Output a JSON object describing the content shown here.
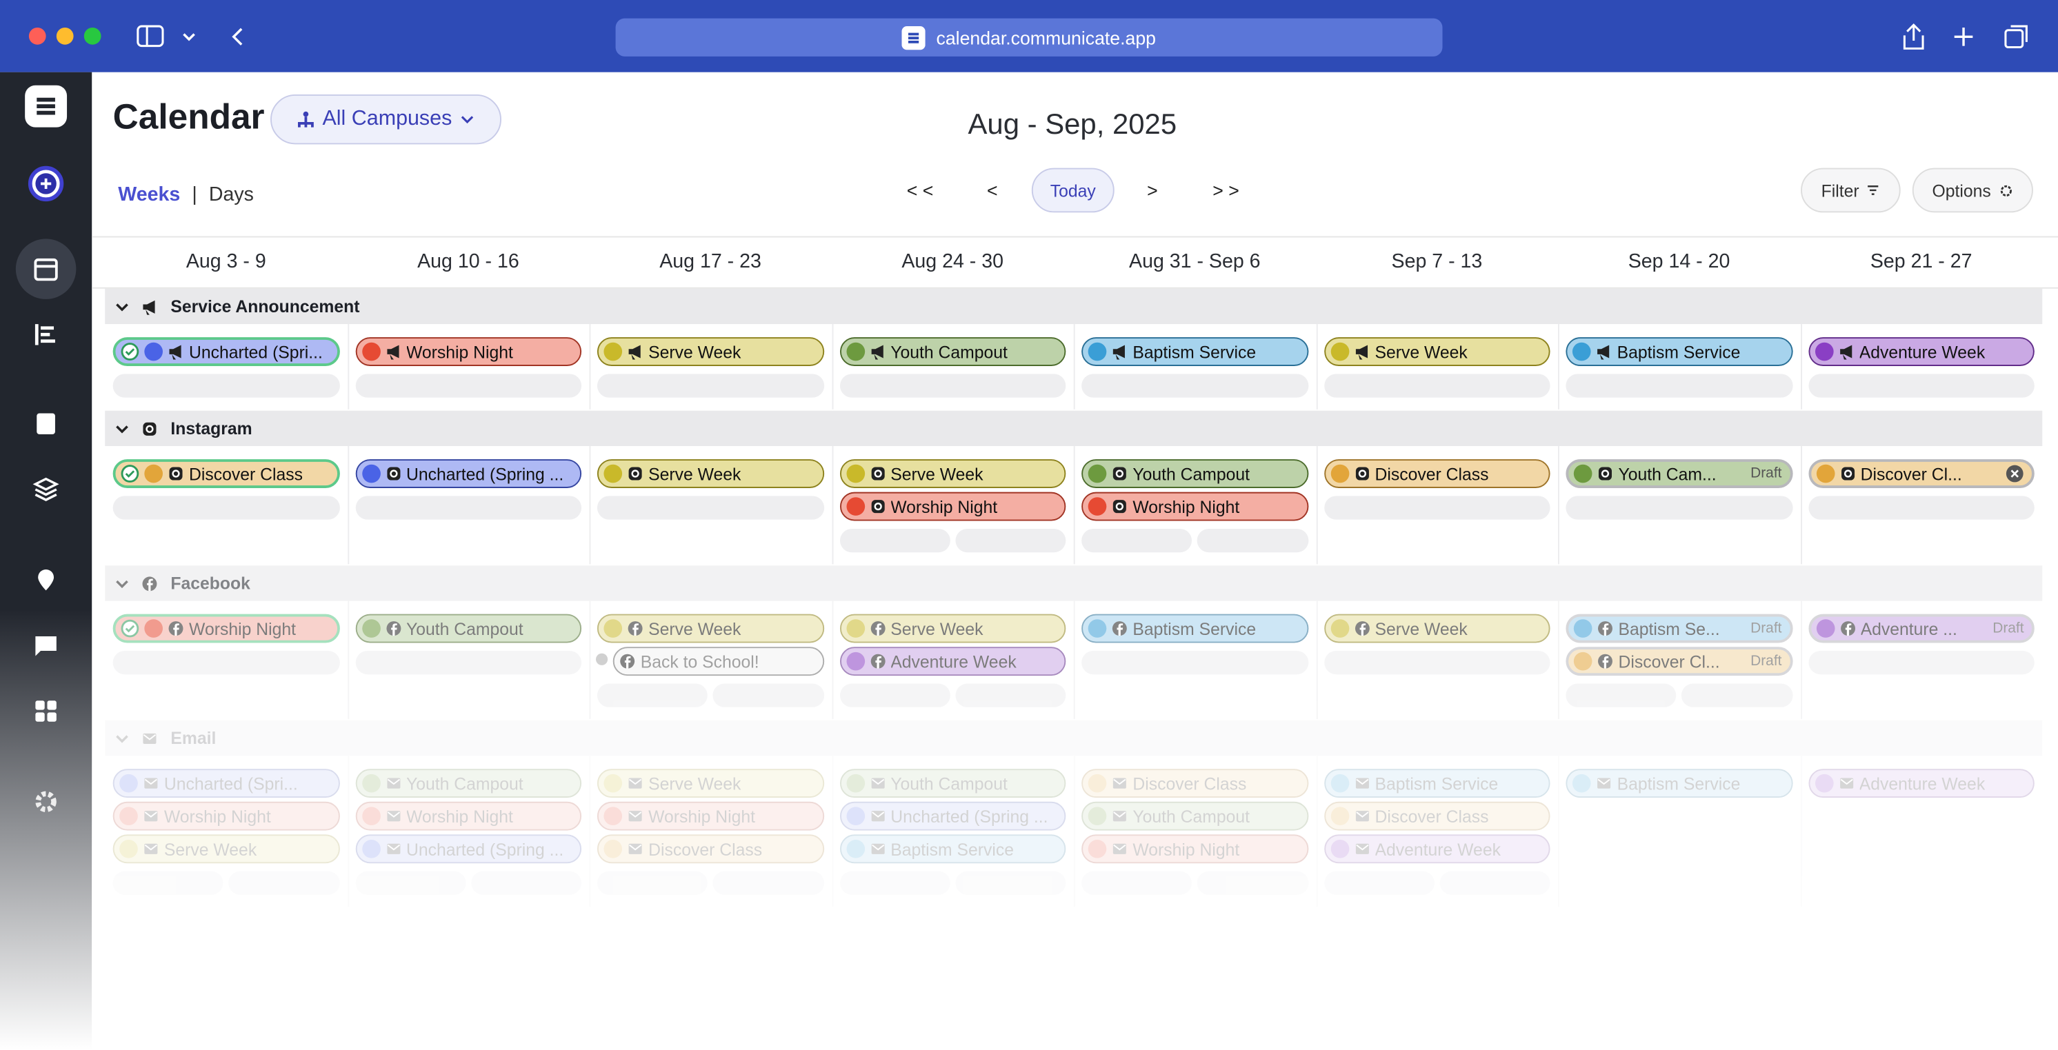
{
  "browser": {
    "url": "calendar.communicate.app"
  },
  "header": {
    "title": "Calendar",
    "campus": "All Campuses",
    "range": "Aug - Sep, 2025",
    "views": [
      "Weeks",
      "Days"
    ],
    "nav": [
      "< <",
      "<",
      "Today",
      ">",
      "> >"
    ],
    "filter": "Filter",
    "options": "Options"
  },
  "weeks": [
    "Aug 3 - 9",
    "Aug 10 - 16",
    "Aug 17 - 23",
    "Aug 24 - 30",
    "Aug 31 - Sep 6",
    "Sep 7 - 13",
    "Sep 14 - 20",
    "Sep 21 - 27"
  ],
  "sections": [
    {
      "name": "Service Announcement",
      "cells": [
        [
          {
            "label": "Uncharted (Spri...",
            "color": "#4a63e6"
          }
        ],
        [
          {
            "label": "Worship Night",
            "color": "#e64a33"
          }
        ],
        [
          {
            "label": "Serve Week",
            "color": "#c9b92a"
          }
        ],
        [
          {
            "label": "Youth Campout",
            "color": "#6d9a3f"
          }
        ],
        [
          {
            "label": "Baptism Service",
            "color": "#3a9ed6"
          }
        ],
        [
          {
            "label": "Serve Week",
            "color": "#c9b92a"
          }
        ],
        [
          {
            "label": "Baptism Service",
            "color": "#3a9ed6"
          }
        ],
        [
          {
            "label": "Adventure Week",
            "color": "#8a3fc4"
          }
        ]
      ]
    },
    {
      "name": "Instagram",
      "cells": [
        [
          {
            "label": "Discover Class",
            "color": "#e2a53a"
          }
        ],
        [
          {
            "label": "Uncharted (Spring ...",
            "color": "#4a63e6"
          }
        ],
        [
          {
            "label": "Serve Week",
            "color": "#c9b92a"
          }
        ],
        [
          {
            "label": "Serve Week",
            "color": "#c9b92a"
          },
          {
            "label": "Worship Night",
            "color": "#e64a33"
          }
        ],
        [
          {
            "label": "Youth Campout",
            "color": "#6d9a3f"
          },
          {
            "label": "Worship Night",
            "color": "#e64a33"
          }
        ],
        [
          {
            "label": "Discover Class",
            "color": "#e2a53a"
          }
        ],
        [
          {
            "label": "Youth Cam...",
            "color": "#6d9a3f",
            "status": "Draft"
          }
        ],
        [
          {
            "label": "Discover Cl...",
            "color": "#e2a53a"
          }
        ]
      ]
    },
    {
      "name": "Facebook",
      "cells": [
        [
          {
            "label": "Worship Night",
            "color": "#e64a33"
          }
        ],
        [
          {
            "label": "Youth Campout",
            "color": "#6d9a3f"
          }
        ],
        [
          {
            "label": "Serve Week",
            "color": "#c9b92a"
          },
          {
            "label": "Back to School!",
            "color": "#999999"
          }
        ],
        [
          {
            "label": "Serve Week",
            "color": "#c9b92a"
          },
          {
            "label": "Adventure Week",
            "color": "#8a3fc4"
          }
        ],
        [
          {
            "label": "Baptism Service",
            "color": "#3a9ed6"
          }
        ],
        [
          {
            "label": "Serve Week",
            "color": "#c9b92a"
          }
        ],
        [
          {
            "label": "Baptism Se...",
            "color": "#3a9ed6",
            "status": "Draft"
          },
          {
            "label": "Discover Cl...",
            "color": "#e2a53a",
            "status": "Draft"
          }
        ],
        [
          {
            "label": "Adventure ...",
            "color": "#8a3fc4",
            "status": "Draft"
          }
        ]
      ]
    },
    {
      "name": "Email",
      "cells": [
        [
          {
            "label": "Uncharted (Spri...",
            "color": "#4a63e6"
          },
          {
            "label": "Worship Night",
            "color": "#e64a33"
          },
          {
            "label": "Serve Week",
            "color": "#c9b92a"
          }
        ],
        [
          {
            "label": "Youth Campout",
            "color": "#6d9a3f"
          },
          {
            "label": "Worship Night",
            "color": "#e64a33"
          },
          {
            "label": "Uncharted (Spring ...",
            "color": "#4a63e6"
          }
        ],
        [
          {
            "label": "Serve Week",
            "color": "#c9b92a"
          },
          {
            "label": "Worship Night",
            "color": "#e64a33"
          },
          {
            "label": "Discover Class",
            "color": "#e2a53a"
          }
        ],
        [
          {
            "label": "Youth Campout",
            "color": "#6d9a3f"
          },
          {
            "label": "Uncharted (Spring ...",
            "color": "#4a63e6"
          },
          {
            "label": "Baptism Service",
            "color": "#3a9ed6"
          }
        ],
        [
          {
            "label": "Discover Class",
            "color": "#e2a53a"
          },
          {
            "label": "Youth Campout",
            "color": "#6d9a3f"
          },
          {
            "label": "Worship Night",
            "color": "#e64a33"
          }
        ],
        [
          {
            "label": "Baptism Service",
            "color": "#3a9ed6"
          },
          {
            "label": "Discover Class",
            "color": "#e2a53a"
          },
          {
            "label": "Adventure Week",
            "color": "#8a3fc4"
          }
        ],
        [
          {
            "label": "Baptism Service",
            "color": "#3a9ed6"
          }
        ],
        [
          {
            "label": "Adventure Week",
            "color": "#8a3fc4"
          }
        ]
      ]
    }
  ]
}
